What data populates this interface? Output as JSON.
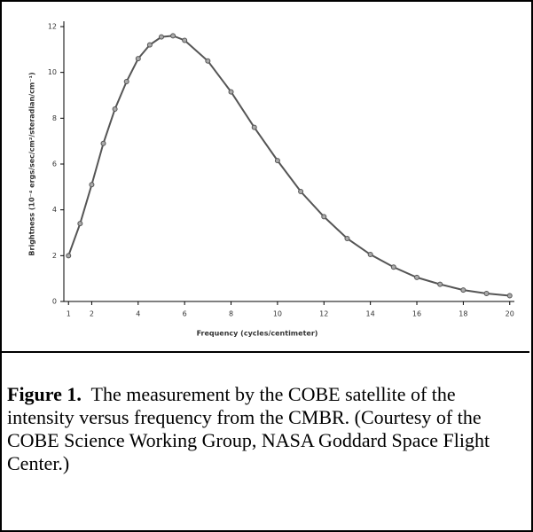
{
  "chart_data": {
    "type": "line",
    "y_label": "Brightness (10⁻⁴ ergs/sec/cm²/steradian/cm⁻¹)",
    "x_label": "Frequency (cycles/centimeter)",
    "x": [
      1,
      1.5,
      2,
      2.5,
      3,
      3.5,
      4,
      4.5,
      5,
      5.5,
      6,
      7,
      8,
      9,
      10,
      11,
      12,
      13,
      14,
      15,
      16,
      17,
      18,
      19,
      20
    ],
    "series": [
      {
        "color": "#555555",
        "values": [
          2.0,
          3.4,
          5.1,
          6.9,
          8.4,
          9.6,
          10.6,
          11.2,
          11.55,
          11.6,
          11.4,
          10.5,
          9.15,
          7.6,
          6.15,
          4.8,
          3.7,
          2.75,
          2.05,
          1.5,
          1.05,
          0.75,
          0.5,
          0.35,
          0.25
        ]
      }
    ],
    "xlim": [
      0.8,
      20.2
    ],
    "xticks": [
      1,
      2,
      4,
      6,
      8,
      10,
      12,
      14,
      16,
      18,
      20
    ],
    "ylim": [
      0,
      12
    ],
    "yticks": [
      0,
      2,
      4,
      6,
      8,
      10,
      12
    ]
  },
  "caption": {
    "label": "Figure 1.",
    "text": "The measurement by the COBE satellite of the intensity versus frequency from the CMBR.  (Courtesy of the COBE Science Working Group, NASA Goddard Space Flight Center.)"
  }
}
